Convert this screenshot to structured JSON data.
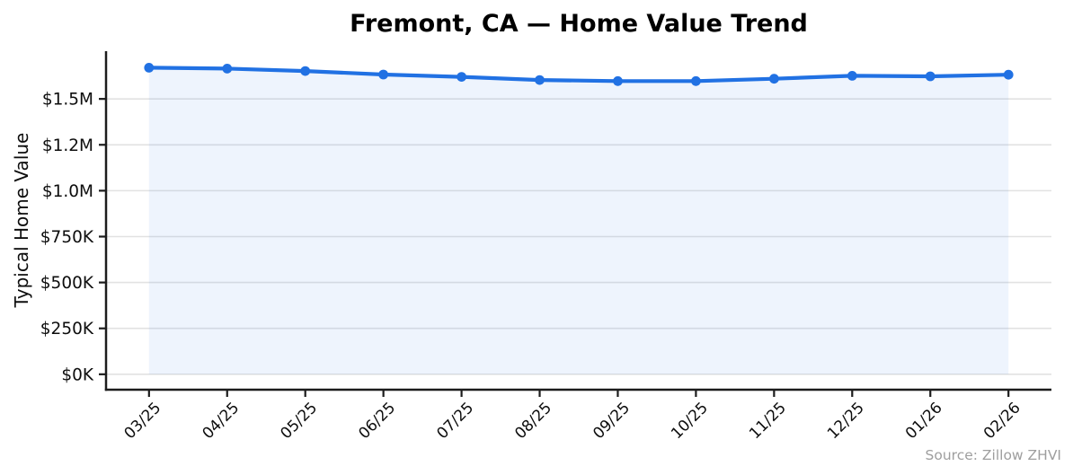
{
  "chart_data": {
    "type": "line",
    "title": "Fremont, CA — Home Value Trend",
    "ylabel": "Typical Home Value",
    "xlabel": "",
    "categories": [
      "03/25",
      "04/25",
      "05/25",
      "06/25",
      "07/25",
      "08/25",
      "09/25",
      "10/25",
      "11/25",
      "12/25",
      "01/26",
      "02/26"
    ],
    "series": [
      {
        "name": "Typical Home Value",
        "values": [
          1670000,
          1665000,
          1652000,
          1633000,
          1620000,
          1603000,
          1597000,
          1597000,
          1610000,
          1626000,
          1623000,
          1632000
        ]
      }
    ],
    "y_ticks": [
      {
        "value": 0,
        "label": "$0K"
      },
      {
        "value": 250000,
        "label": "$250K"
      },
      {
        "value": 500000,
        "label": "$500K"
      },
      {
        "value": 750000,
        "label": "$750K"
      },
      {
        "value": 1000000,
        "label": "$1.0M"
      },
      {
        "value": 1250000,
        "label": "$1.2M"
      },
      {
        "value": 1500000,
        "label": "$1.5M"
      }
    ],
    "ylim": [
      -84000,
      1760000
    ],
    "grid": true,
    "legend_position": "none",
    "source_note": "Source: Zillow ZHVI",
    "colors": {
      "line": "#2171e3",
      "marker": "#2171e3",
      "area_fill": "rgba(33,113,227,0.08)",
      "gridline": "#e2e2e2",
      "axis": "#1c1c1c",
      "tick_text": "#0d0d0d",
      "source_text": "#9e9e9e"
    }
  }
}
